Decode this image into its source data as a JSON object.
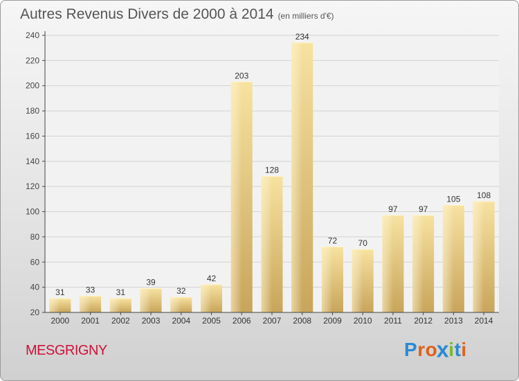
{
  "chart_data": {
    "type": "bar",
    "title": "Autres Revenus Divers de 2000 à 2014",
    "subtitle": "(en milliers d'€)",
    "categories": [
      "2000",
      "2001",
      "2002",
      "2003",
      "2004",
      "2005",
      "2006",
      "2007",
      "2008",
      "2009",
      "2010",
      "2011",
      "2012",
      "2013",
      "2014"
    ],
    "values": [
      31,
      33,
      31,
      39,
      32,
      42,
      203,
      128,
      234,
      72,
      70,
      97,
      97,
      105,
      108
    ],
    "ylim": [
      20,
      240
    ],
    "yticks": [
      20,
      40,
      60,
      80,
      100,
      120,
      140,
      160,
      180,
      200,
      220,
      240
    ],
    "grid": true,
    "bar_color": "#e8c97a",
    "xlabel": "",
    "ylabel": ""
  },
  "location": "MESGRIGNY",
  "logo": {
    "text": "Proxiti",
    "letters": [
      "P",
      "r",
      "o",
      "x",
      "i",
      "t",
      "i"
    ],
    "colors": [
      "#2a8ad4",
      "#e0601a",
      "#e0601a",
      "#2a8ad4",
      "#7ab826",
      "#2a8ad4",
      "#e0601a"
    ]
  }
}
